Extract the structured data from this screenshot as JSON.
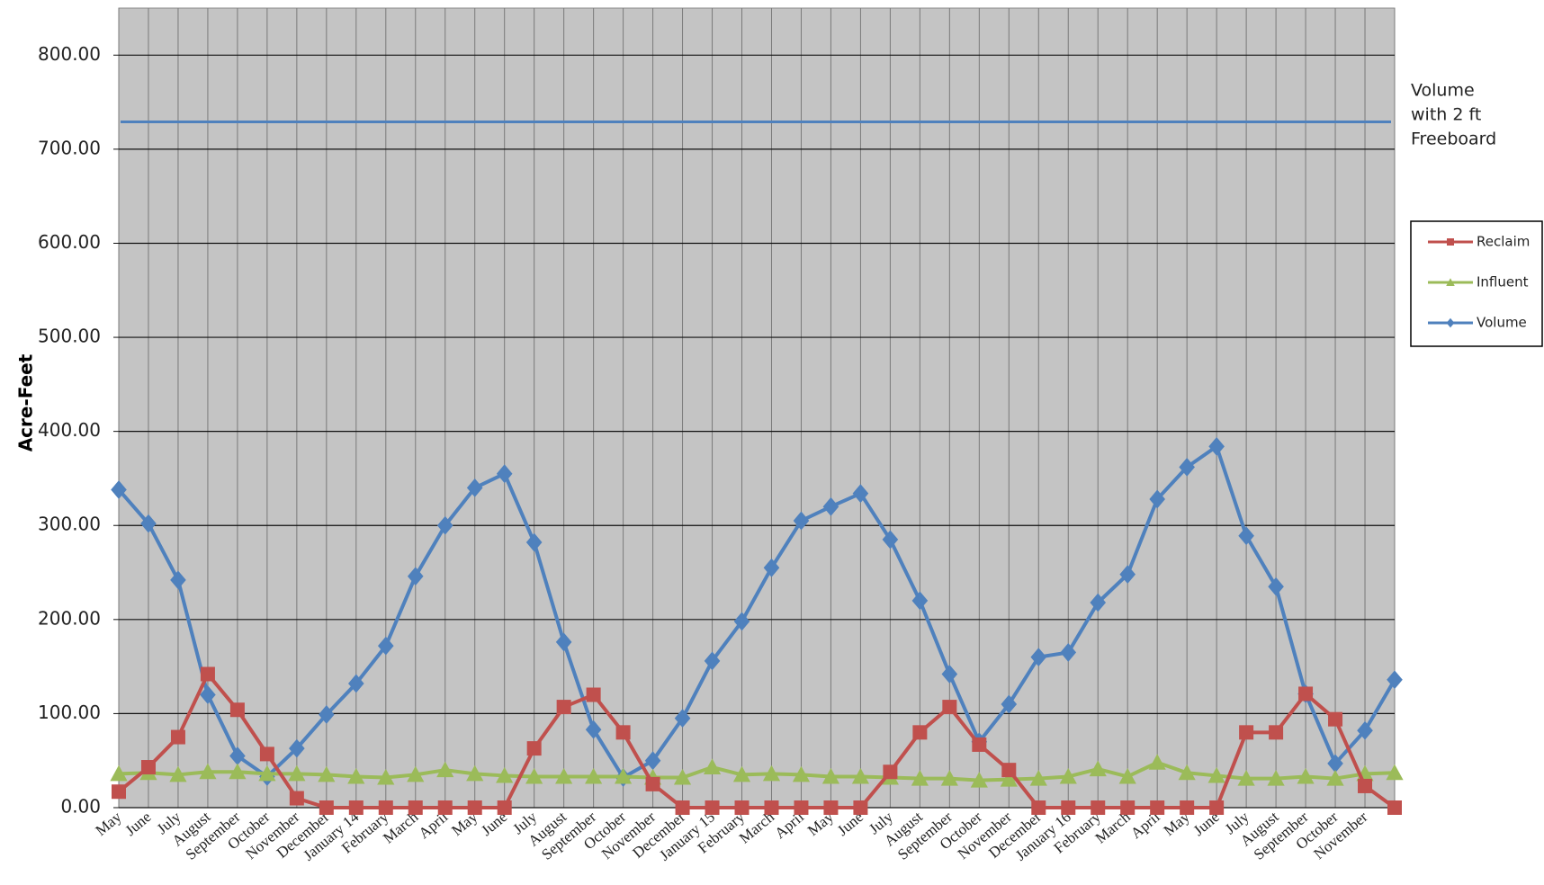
{
  "chart_data": {
    "type": "line",
    "y_label": "Acre-Feet",
    "categories": [
      "May",
      "June",
      "July",
      "August",
      "September",
      "October",
      "November",
      "December",
      "January 14",
      "February",
      "March",
      "April",
      "May",
      "June",
      "July",
      "August",
      "September",
      "October",
      "November",
      "December",
      "January 15",
      "February",
      "March",
      "April",
      "May",
      "June",
      "July",
      "August",
      "September",
      "October",
      "November",
      "December",
      "January 16",
      "February",
      "March",
      "April",
      "May",
      "June",
      "July",
      "August",
      "September",
      "October",
      "November",
      null
    ],
    "series": [
      {
        "name": "Reclaim",
        "color": "#c0504d",
        "marker": "square",
        "values": [
          17,
          43,
          75,
          142,
          104,
          57,
          10,
          0,
          0,
          0,
          0,
          0,
          0,
          0,
          63,
          107,
          120,
          80,
          25,
          0,
          0,
          0,
          0,
          0,
          0,
          0,
          38,
          80,
          107,
          67,
          40,
          0,
          0,
          0,
          0,
          0,
          0,
          0,
          80,
          80,
          121,
          94,
          23,
          0
        ]
      },
      {
        "name": "Influent",
        "color": "#9bbb59",
        "marker": "triangle",
        "values": [
          36,
          37,
          35,
          38,
          38,
          36,
          36,
          35,
          33,
          32,
          35,
          40,
          36,
          34,
          33,
          33,
          33,
          33,
          32,
          32,
          43,
          35,
          36,
          35,
          33,
          33,
          32,
          31,
          31,
          29,
          30,
          31,
          33,
          41,
          33,
          48,
          37,
          34,
          31,
          31,
          33,
          31,
          36,
          37
        ]
      },
      {
        "name": "Volume",
        "color": "#4f81bd",
        "marker": "diamond",
        "values": [
          338,
          302,
          242,
          120,
          55,
          33,
          63,
          99,
          132,
          172,
          246,
          300,
          340,
          355,
          282,
          176,
          83,
          32,
          50,
          95,
          156,
          198,
          255,
          305,
          320,
          334,
          285,
          220,
          142,
          70,
          110,
          160,
          165,
          218,
          248,
          328,
          362,
          384,
          289,
          235,
          121,
          47,
          82,
          136
        ]
      }
    ],
    "freeboard": {
      "value": 729,
      "color": "#4f81bd",
      "label_lines": [
        "Volume",
        "with 2 ft",
        "Freeboard"
      ]
    },
    "ylim": [
      0,
      850
    ],
    "yticks": [
      {
        "value": 0,
        "label": "0.00"
      },
      {
        "value": 100,
        "label": "100.00"
      },
      {
        "value": 200,
        "label": "200.00"
      },
      {
        "value": 300,
        "label": "300.00"
      },
      {
        "value": 400,
        "label": "400.00"
      },
      {
        "value": 500,
        "label": "500.00"
      },
      {
        "value": 600,
        "label": "600.00"
      },
      {
        "value": 700,
        "label": "700.00"
      },
      {
        "value": 800,
        "label": "800.00"
      }
    ],
    "grid": true
  }
}
